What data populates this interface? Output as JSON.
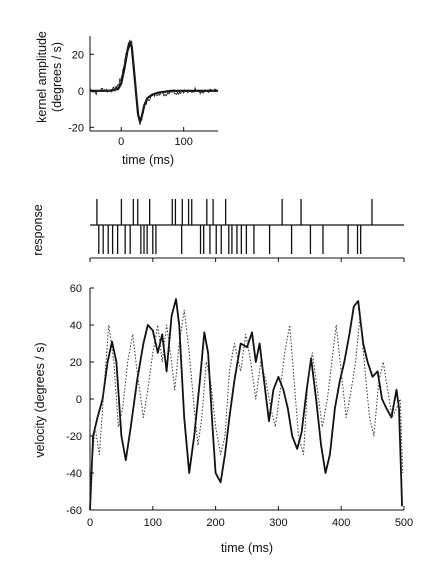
{
  "chart_data": [
    {
      "panel": "kernel",
      "type": "line",
      "xlabel": "time (ms)",
      "ylabel_line1": "kernel amplitude",
      "ylabel_line2": "(degrees / s)",
      "xlim": [
        -50,
        155
      ],
      "ylim": [
        -22,
        30
      ],
      "xticks": [
        0,
        100
      ],
      "yticks": [
        -20,
        0,
        20
      ],
      "series": [
        {
          "style": "thick",
          "x": [
            -50,
            -20,
            -5,
            0,
            5,
            10,
            14,
            17,
            20,
            24,
            27,
            30,
            33,
            37,
            42,
            50,
            60,
            80,
            100,
            155
          ],
          "y": [
            0,
            0,
            1,
            4,
            12,
            22,
            26,
            24,
            13,
            -2,
            -13,
            -17,
            -14,
            -8,
            -4,
            -2,
            -1,
            0,
            0,
            0
          ]
        },
        {
          "style": "noisy",
          "x": [
            -50,
            -40,
            -30,
            -20,
            -10,
            -5,
            0,
            5,
            10,
            14,
            17,
            20,
            24,
            27,
            30,
            33,
            37,
            42,
            50,
            60,
            70,
            80,
            90,
            100,
            110,
            120,
            130,
            140,
            155
          ],
          "y": [
            1,
            -1,
            1,
            0,
            1,
            3,
            7,
            15,
            24,
            28,
            26,
            16,
            1,
            -12,
            -18,
            -15,
            -9,
            -5,
            -3,
            -1,
            -2,
            0,
            -1,
            0,
            -1,
            1,
            -1,
            0,
            0
          ]
        }
      ]
    },
    {
      "panel": "response",
      "type": "scatter",
      "ylabel": "response",
      "xlim": [
        0,
        500
      ],
      "upper_spikes": [
        11,
        50,
        69,
        76,
        95,
        131,
        136,
        147,
        157,
        162,
        186,
        196,
        216,
        306,
        336,
        449
      ],
      "lower_spikes": [
        14,
        21,
        29,
        36,
        44,
        56,
        64,
        81,
        86,
        91,
        100,
        105,
        146,
        176,
        181,
        191,
        201,
        209,
        221,
        226,
        234,
        241,
        249,
        261,
        286,
        321,
        351,
        371,
        411,
        426,
        431
      ]
    },
    {
      "panel": "velocity",
      "type": "line",
      "xlabel": "time (ms)",
      "ylabel": "velocity (degrees / s)",
      "xlim": [
        0,
        500
      ],
      "ylim": [
        -60,
        60
      ],
      "xticks": [
        0,
        100,
        200,
        300,
        400,
        500
      ],
      "yticks": [
        -60,
        -40,
        -20,
        0,
        20,
        40,
        60
      ],
      "series": [
        {
          "style": "solid",
          "x": [
            0,
            5,
            12,
            20,
            28,
            35,
            42,
            50,
            57,
            65,
            75,
            85,
            92,
            100,
            108,
            115,
            122,
            130,
            137,
            142,
            150,
            158,
            166,
            175,
            182,
            188,
            195,
            200,
            208,
            215,
            222,
            230,
            240,
            250,
            258,
            264,
            270,
            277,
            285,
            292,
            300,
            308,
            315,
            322,
            330,
            337,
            345,
            352,
            360,
            368,
            375,
            382,
            390,
            398,
            405,
            413,
            420,
            427,
            435,
            442,
            450,
            458,
            465,
            472,
            480,
            488,
            492,
            497
          ],
          "y": [
            -60,
            -20,
            -10,
            0,
            20,
            31,
            20,
            -20,
            -33,
            -15,
            10,
            30,
            40,
            37,
            25,
            35,
            15,
            45,
            54,
            40,
            -10,
            -40,
            -20,
            10,
            36,
            25,
            -15,
            -40,
            -45,
            -30,
            -10,
            10,
            30,
            28,
            36,
            20,
            30,
            10,
            -12,
            5,
            12,
            5,
            -5,
            -20,
            -27,
            -18,
            5,
            22,
            0,
            -25,
            -40,
            -30,
            -5,
            10,
            20,
            35,
            50,
            53,
            30,
            20,
            12,
            15,
            0,
            -5,
            -10,
            5,
            -5,
            -58
          ]
        },
        {
          "style": "dotted",
          "x": [
            0,
            8,
            15,
            22,
            30,
            38,
            45,
            52,
            60,
            68,
            75,
            85,
            92,
            100,
            108,
            115,
            122,
            128,
            135,
            142,
            150,
            158,
            166,
            172,
            178,
            185,
            192,
            200,
            208,
            215,
            222,
            230,
            240,
            248,
            256,
            264,
            272,
            280,
            288,
            295,
            303,
            310,
            318,
            325,
            332,
            340,
            347,
            354,
            362,
            370,
            378,
            385,
            392,
            400,
            408,
            416,
            423,
            430,
            438,
            445,
            452,
            460,
            467,
            474,
            481,
            488,
            494,
            498
          ],
          "y": [
            -50,
            -15,
            -30,
            5,
            40,
            20,
            -15,
            -5,
            20,
            35,
            15,
            -10,
            5,
            25,
            40,
            20,
            40,
            25,
            5,
            30,
            48,
            25,
            -5,
            -25,
            -10,
            20,
            10,
            -15,
            -30,
            -20,
            15,
            30,
            15,
            35,
            20,
            0,
            20,
            10,
            -5,
            -15,
            5,
            25,
            40,
            10,
            -20,
            -30,
            10,
            25,
            5,
            -15,
            0,
            20,
            40,
            15,
            -10,
            5,
            20,
            45,
            15,
            -10,
            -20,
            10,
            20,
            5,
            -10,
            -5,
            0,
            -40
          ]
        }
      ]
    }
  ]
}
